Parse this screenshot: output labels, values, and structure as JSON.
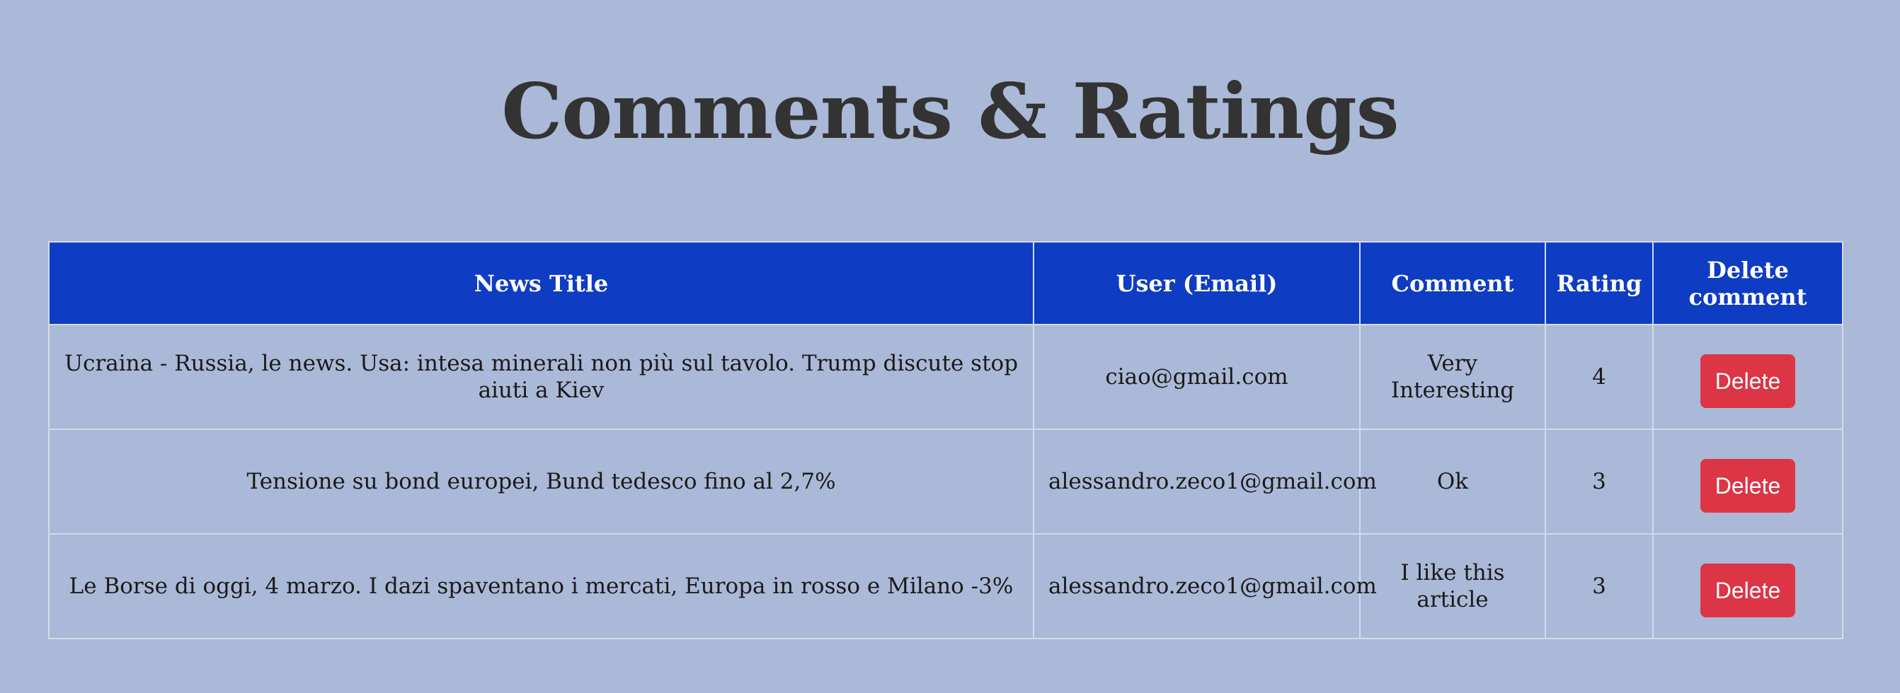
{
  "page": {
    "title": "Comments & Ratings"
  },
  "table": {
    "headers": {
      "news_title": "News Title",
      "user_email": "User (Email)",
      "comment": "Comment",
      "rating": "Rating",
      "delete": "Delete comment"
    },
    "rows": [
      {
        "news_title": "Ucraina - Russia, le news. Usa: intesa minerali non più sul tavolo. Trump discute stop aiuti a Kiev",
        "user_email": "ciao@gmail.com",
        "comment": "Very Interesting",
        "rating": "4",
        "delete_label": "Delete"
      },
      {
        "news_title": "Tensione su bond europei, Bund tedesco fino al 2,7%",
        "user_email": "alessandro.zeco1@gmail.com",
        "comment": "Ok",
        "rating": "3",
        "delete_label": "Delete"
      },
      {
        "news_title": "Le Borse di oggi, 4 marzo. I dazi spaventano i mercati, Europa in rosso e Milano -3%",
        "user_email": "alessandro.zeco1@gmail.com",
        "comment": "I like this article",
        "rating": "3",
        "delete_label": "Delete"
      }
    ]
  },
  "colors": {
    "page_background": "#aab9d7",
    "header_background": "#0e3cc3",
    "header_text": "#ffffff",
    "title_text": "#333333",
    "delete_button": "#dc3545",
    "table_border": "#d4dbea"
  }
}
